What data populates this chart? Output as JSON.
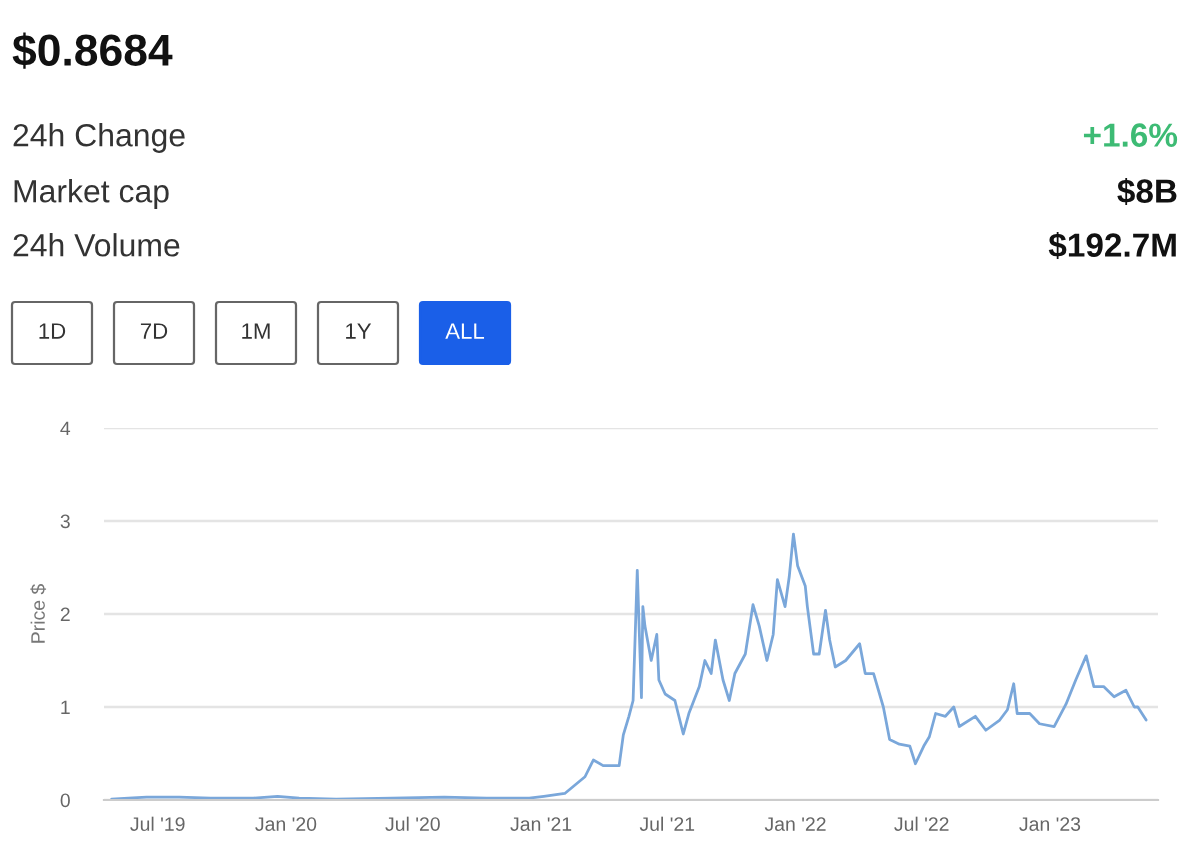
{
  "chart_data": [
    {
      "type": "other",
      "title": "$0.8684",
      "annotations": [
        "24h Change",
        "+1.6%",
        "Market cap",
        "$8B",
        "24h Volume",
        "$192.7M",
        "1D",
        "7D",
        "1M",
        "1Y",
        "ALL"
      ]
    },
    {
      "type": "line",
      "ylabel": "Price $",
      "color": "#7aa7da",
      "x": [
        "2019-04-26",
        "2019-05-20",
        "2019-06-15",
        "2019-08-01",
        "2019-09-15",
        "2019-11-15",
        "2019-12-20",
        "2020-01-20",
        "2020-03-13",
        "2020-06-01",
        "2020-08-15",
        "2020-10-15",
        "2020-12-15",
        "2021-01-05",
        "2021-02-04",
        "2021-03-05",
        "2021-03-17",
        "2021-03-31",
        "2021-04-23",
        "2021-04-29",
        "2021-05-07",
        "2021-05-13",
        "2021-05-19",
        "2021-05-25",
        "2021-05-27",
        "2021-05-30",
        "2021-06-08",
        "2021-06-16",
        "2021-06-19",
        "2021-06-28",
        "2021-07-12",
        "2021-07-24",
        "2021-08-01",
        "2021-08-16",
        "2021-08-24",
        "2021-09-02",
        "2021-09-08",
        "2021-09-19",
        "2021-09-28",
        "2021-10-06",
        "2021-10-21",
        "2021-11-01",
        "2021-11-10",
        "2021-11-21",
        "2021-11-30",
        "2021-12-06",
        "2021-12-17",
        "2021-12-23",
        "2021-12-29",
        "2022-01-04",
        "2022-01-15",
        "2022-01-18",
        "2022-01-27",
        "2022-02-04",
        "2022-02-13",
        "2022-02-19",
        "2022-02-27",
        "2022-03-14",
        "2022-04-03",
        "2022-04-11",
        "2022-04-23",
        "2022-05-07",
        "2022-05-16",
        "2022-05-30",
        "2022-06-14",
        "2022-06-22",
        "2022-07-04",
        "2022-07-12",
        "2022-07-21",
        "2022-08-04",
        "2022-08-16",
        "2022-08-24",
        "2022-09-16",
        "2022-10-01",
        "2022-10-21",
        "2022-11-01",
        "2022-11-10",
        "2022-11-15",
        "2022-12-03",
        "2022-12-17",
        "2023-01-07",
        "2023-01-24",
        "2023-02-07",
        "2023-02-22",
        "2023-03-05",
        "2023-03-19",
        "2023-04-03",
        "2023-04-20",
        "2023-05-02",
        "2023-05-07",
        "2023-05-19"
      ],
      "values": [
        0.01,
        0.02,
        0.03,
        0.03,
        0.02,
        0.02,
        0.04,
        0.02,
        0.01,
        0.02,
        0.03,
        0.02,
        0.02,
        0.04,
        0.07,
        0.25,
        0.43,
        0.37,
        0.37,
        0.7,
        0.9,
        1.07,
        2.47,
        1.1,
        2.08,
        1.87,
        1.5,
        1.78,
        1.29,
        1.14,
        1.07,
        0.71,
        0.93,
        1.22,
        1.5,
        1.36,
        1.72,
        1.29,
        1.07,
        1.36,
        1.57,
        2.1,
        1.87,
        1.5,
        1.78,
        2.37,
        2.08,
        2.4,
        2.86,
        2.52,
        2.3,
        2.08,
        1.57,
        1.57,
        2.04,
        1.72,
        1.43,
        1.5,
        1.68,
        1.36,
        1.36,
        1.0,
        0.65,
        0.6,
        0.58,
        0.39,
        0.58,
        0.68,
        0.93,
        0.9,
        1.0,
        0.79,
        0.9,
        0.75,
        0.86,
        0.97,
        1.25,
        0.93,
        0.93,
        0.82,
        0.79,
        1.03,
        1.29,
        1.55,
        1.22,
        1.22,
        1.11,
        1.18,
        1.0,
        1.0,
        0.86
      ],
      "xlim": [
        "2019-04-15",
        "2023-06-05"
      ],
      "ylim": [
        0,
        4
      ],
      "yticks": [
        0,
        1,
        2,
        3,
        4
      ],
      "xticks": [
        {
          "value": "2019-07-01",
          "label": "Jul '19"
        },
        {
          "value": "2020-01-01",
          "label": "Jan '20"
        },
        {
          "value": "2020-07-01",
          "label": "Jul '20"
        },
        {
          "value": "2021-01-01",
          "label": "Jan '21"
        },
        {
          "value": "2021-07-01",
          "label": "Jul '21"
        },
        {
          "value": "2022-01-01",
          "label": "Jan '22"
        },
        {
          "value": "2022-07-01",
          "label": "Jul '22"
        },
        {
          "value": "2023-01-01",
          "label": "Jan '23"
        }
      ],
      "grid": "y"
    }
  ]
}
